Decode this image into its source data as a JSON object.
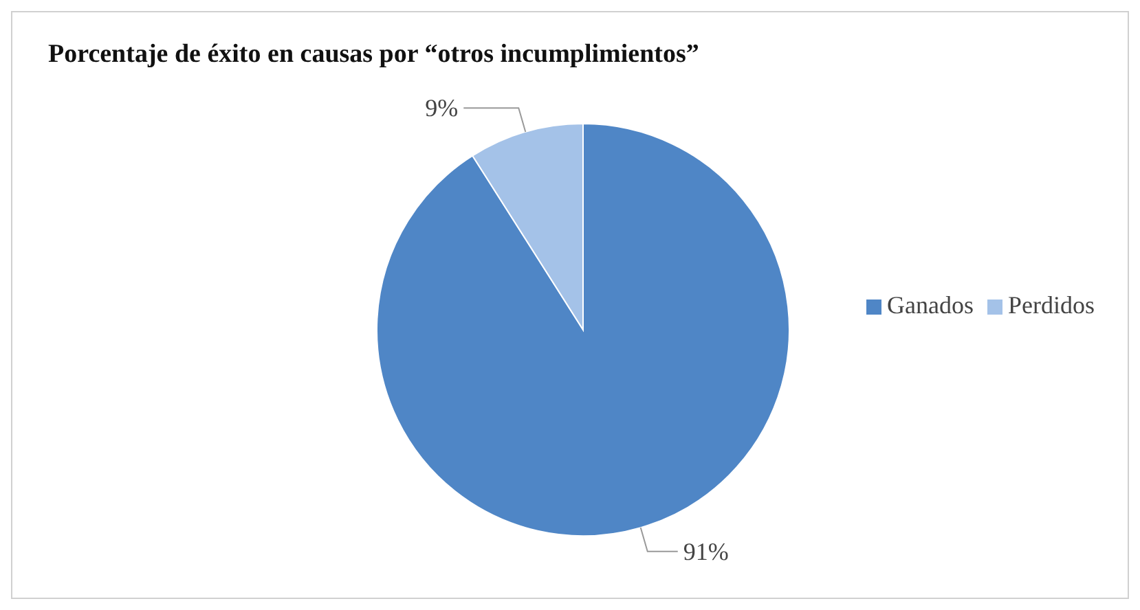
{
  "chart_data": {
    "type": "pie",
    "title": "Porcentaje de éxito en causas por “otros incumplimientos”",
    "categories": [
      "Ganados",
      "Perdidos"
    ],
    "values": [
      91,
      9
    ],
    "colors": [
      "#4f86c6",
      "#a4c2e8"
    ],
    "value_labels": [
      "91%",
      "9%"
    ],
    "legend": "right"
  }
}
